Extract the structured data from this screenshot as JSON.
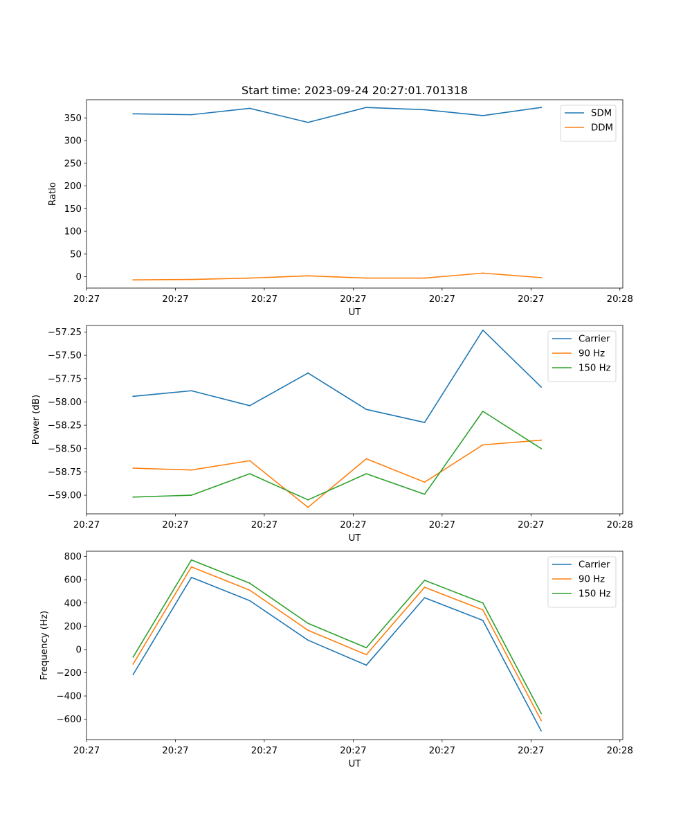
{
  "chart_data": [
    {
      "type": "line",
      "title": "Start time: 2023-09-24 20:27:01.701318",
      "xlabel": "UT",
      "ylabel": "Ratio",
      "x_tick_labels": [
        "20:27",
        "20:27",
        "20:27",
        "20:27",
        "20:27",
        "20:27",
        "20:28"
      ],
      "x": [
        1,
        2,
        3,
        4,
        5,
        6,
        7,
        8
      ],
      "xlim": [
        0.2,
        9.4
      ],
      "x_tick_values": [
        0.2,
        1.725,
        3.25,
        4.775,
        6.3,
        7.825,
        9.35
      ],
      "ylim": [
        -25,
        390
      ],
      "y_ticks": [
        0,
        50,
        100,
        150,
        200,
        250,
        300,
        350
      ],
      "y_tick_labels": [
        "0",
        "50",
        "100",
        "150",
        "200",
        "250",
        "300",
        "350"
      ],
      "series": [
        {
          "name": "SDM",
          "color": "#1f77b4",
          "values": [
            359,
            357,
            371,
            340,
            373,
            368,
            355,
            373
          ]
        },
        {
          "name": "DDM",
          "color": "#ff7f0e",
          "values": [
            -7,
            -6,
            -3,
            2,
            -3,
            -3,
            8,
            -2
          ]
        }
      ],
      "legend": "top-right"
    },
    {
      "type": "line",
      "title": "",
      "xlabel": "UT",
      "ylabel": "Power (dB)",
      "x_tick_labels": [
        "20:27",
        "20:27",
        "20:27",
        "20:27",
        "20:27",
        "20:27",
        "20:28"
      ],
      "x": [
        1,
        2,
        3,
        4,
        5,
        6,
        7,
        8
      ],
      "xlim": [
        0.2,
        9.4
      ],
      "x_tick_values": [
        0.2,
        1.725,
        3.25,
        4.775,
        6.3,
        7.825,
        9.35
      ],
      "ylim": [
        -59.2,
        -57.18
      ],
      "y_ticks": [
        -59.0,
        -58.75,
        -58.5,
        -58.25,
        -58.0,
        -57.75,
        -57.5,
        -57.25
      ],
      "y_tick_labels": [
        "−59.00",
        "−58.75",
        "−58.50",
        "−58.25",
        "−58.00",
        "−57.75",
        "−57.50",
        "−57.25"
      ],
      "series": [
        {
          "name": "Carrier",
          "color": "#1f77b4",
          "values": [
            -57.94,
            -57.88,
            -58.04,
            -57.69,
            -58.08,
            -58.22,
            -57.23,
            -57.84
          ]
        },
        {
          "name": "90 Hz",
          "color": "#ff7f0e",
          "values": [
            -58.71,
            -58.73,
            -58.63,
            -59.13,
            -58.61,
            -58.86,
            -58.46,
            -58.41
          ]
        },
        {
          "name": "150 Hz",
          "color": "#2ca02c",
          "values": [
            -59.02,
            -59.0,
            -58.77,
            -59.05,
            -58.77,
            -58.99,
            -58.1,
            -58.5
          ]
        }
      ],
      "legend": "top-right"
    },
    {
      "type": "line",
      "title": "",
      "xlabel": "UT",
      "ylabel": "Frequency (Hz)",
      "x_tick_labels": [
        "20:27",
        "20:27",
        "20:27",
        "20:27",
        "20:27",
        "20:27",
        "20:28"
      ],
      "x": [
        1,
        2,
        3,
        4,
        5,
        6,
        7,
        8
      ],
      "xlim": [
        0.2,
        9.4
      ],
      "x_tick_values": [
        0.2,
        1.725,
        3.25,
        4.775,
        6.3,
        7.825,
        9.35
      ],
      "ylim": [
        -775,
        845
      ],
      "y_ticks": [
        -600,
        -400,
        -200,
        0,
        200,
        400,
        600,
        800
      ],
      "y_tick_labels": [
        "−600",
        "−400",
        "−200",
        "0",
        "200",
        "400",
        "600",
        "800"
      ],
      "series": [
        {
          "name": "Carrier",
          "color": "#1f77b4",
          "values": [
            -215,
            620,
            420,
            80,
            -135,
            445,
            250,
            -700
          ]
        },
        {
          "name": "90 Hz",
          "color": "#ff7f0e",
          "values": [
            -125,
            710,
            510,
            165,
            -45,
            535,
            340,
            -610
          ]
        },
        {
          "name": "150 Hz",
          "color": "#2ca02c",
          "values": [
            -65,
            770,
            570,
            225,
            15,
            595,
            400,
            -550
          ]
        }
      ],
      "legend": "top-right"
    }
  ]
}
